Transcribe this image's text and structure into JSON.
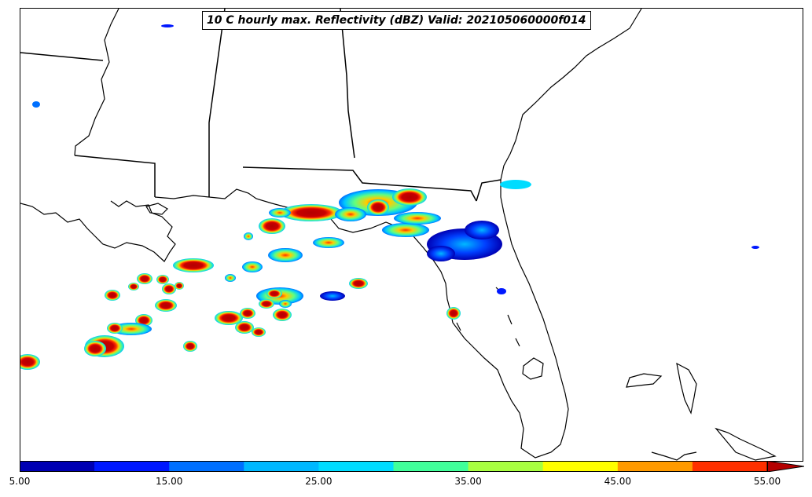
{
  "title": "10 C hourly max. Reflectivity (dBZ) Valid: 202105060000f014",
  "colorbar": {
    "tick_labels": [
      "5.00",
      "15.00",
      "25.00",
      "35.00",
      "45.00",
      "55.00"
    ],
    "bins": [
      5,
      10,
      15,
      20,
      25,
      30,
      35,
      40,
      45,
      50,
      55
    ],
    "colors": [
      "#0000b3",
      "#0018ff",
      "#0070ff",
      "#00b8ff",
      "#00dcff",
      "#40ff9a",
      "#a8ff40",
      "#ffff00",
      "#ff9a00",
      "#ff3000",
      "#b40000"
    ],
    "extend": "max"
  },
  "map": {
    "region": "U.S. Gulf Coast and Florida",
    "projection": "Lambert Conformal",
    "coastline_color": "#000000",
    "state_border_color": "#000000"
  }
}
